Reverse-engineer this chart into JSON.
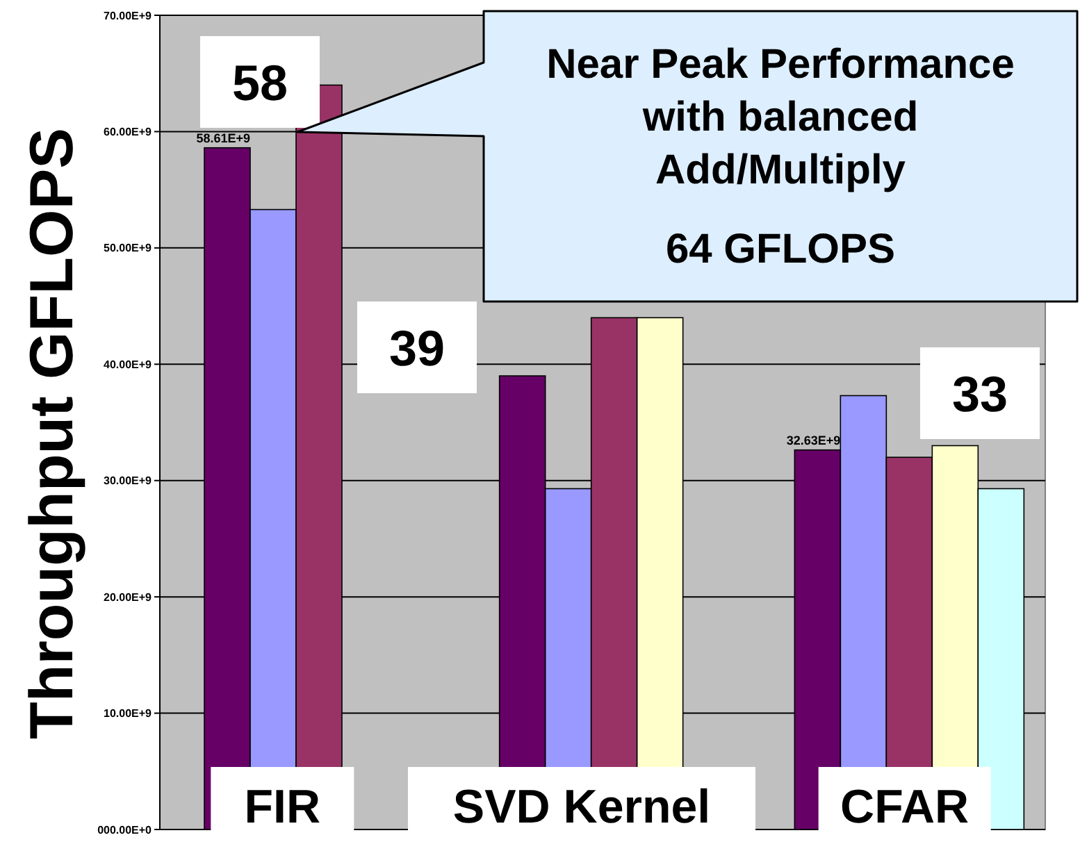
{
  "chart_data": {
    "type": "bar",
    "ylabel": "Throughput GFLOPS",
    "categories": [
      "FIR",
      "SVD Kernel",
      "CFAR"
    ],
    "series": [
      {
        "color": "#660066",
        "values": [
          58610000000,
          39000000000,
          32630000000
        ],
        "value_labels": [
          "58.61E+9",
          null,
          "32.63E+9"
        ]
      },
      {
        "color": "#9999ff",
        "values": [
          53300000000,
          29300000000,
          37300000000
        ]
      },
      {
        "color": "#993366",
        "values": [
          64000000000,
          44000000000,
          32000000000
        ]
      },
      {
        "color": "#ffffcc",
        "values": [
          null,
          44000000000,
          33000000000
        ]
      },
      {
        "color": "#ccffff",
        "values": [
          null,
          null,
          29300000000
        ]
      }
    ],
    "ylim": [
      0,
      70000000000
    ],
    "yticks": [
      {
        "value": 0,
        "label": "000.00E+0"
      },
      {
        "value": 10000000000,
        "label": "10.00E+9"
      },
      {
        "value": 20000000000,
        "label": "20.00E+9"
      },
      {
        "value": 30000000000,
        "label": "30.00E+9"
      },
      {
        "value": 40000000000,
        "label": "40.00E+9"
      },
      {
        "value": 50000000000,
        "label": "50.00E+9"
      },
      {
        "value": 60000000000,
        "label": "60.00E+9"
      },
      {
        "value": 70000000000,
        "label": "70.00E+9"
      }
    ],
    "grid": "y",
    "annotations": [
      "58",
      "39",
      "33",
      "Near Peak Performance\nwith balanced\nAdd/Multiply\n64 GFLOPS"
    ]
  }
}
